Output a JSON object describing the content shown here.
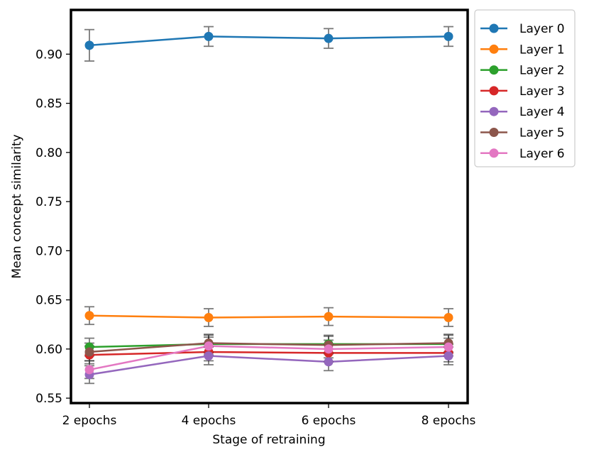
{
  "chart_data": {
    "type": "line",
    "title": "",
    "xlabel": "Stage of retraining",
    "ylabel": "Mean concept similarity",
    "categories": [
      "2 epochs",
      "4 epochs",
      "6 epochs",
      "8 epochs"
    ],
    "ylim": [
      0.545,
      0.945
    ],
    "yticks": [
      0.55,
      0.6,
      0.65,
      0.7,
      0.75,
      0.8,
      0.85,
      0.9
    ],
    "ytick_labels": [
      "0.55",
      "0.60",
      "0.65",
      "0.70",
      "0.75",
      "0.80",
      "0.85",
      "0.90"
    ],
    "legend_position": "outside upper-right",
    "grid": false,
    "series": [
      {
        "name": "Layer 0",
        "color": "#1f77b4",
        "values": [
          0.909,
          0.918,
          0.916,
          0.918
        ],
        "errors": [
          0.016,
          0.01,
          0.01,
          0.01
        ]
      },
      {
        "name": "Layer 1",
        "color": "#ff7f0e",
        "values": [
          0.634,
          0.632,
          0.633,
          0.632
        ],
        "errors": [
          0.009,
          0.009,
          0.009,
          0.009
        ]
      },
      {
        "name": "Layer 2",
        "color": "#2ca02c",
        "values": [
          0.602,
          0.605,
          0.605,
          0.605
        ],
        "errors": [
          0.009,
          0.009,
          0.009,
          0.009
        ]
      },
      {
        "name": "Layer 3",
        "color": "#d62728",
        "values": [
          0.594,
          0.597,
          0.596,
          0.596
        ],
        "errors": [
          0.009,
          0.009,
          0.009,
          0.009
        ]
      },
      {
        "name": "Layer 4",
        "color": "#9467bd",
        "values": [
          0.574,
          0.593,
          0.587,
          0.593
        ],
        "errors": [
          0.009,
          0.009,
          0.009,
          0.009
        ]
      },
      {
        "name": "Layer 5",
        "color": "#8c564b",
        "values": [
          0.597,
          0.606,
          0.604,
          0.606
        ],
        "errors": [
          0.009,
          0.009,
          0.009,
          0.009
        ]
      },
      {
        "name": "Layer 6",
        "color": "#e377c2",
        "values": [
          0.579,
          0.603,
          0.6,
          0.602
        ],
        "errors": [
          0.009,
          0.009,
          0.009,
          0.009
        ]
      }
    ]
  }
}
